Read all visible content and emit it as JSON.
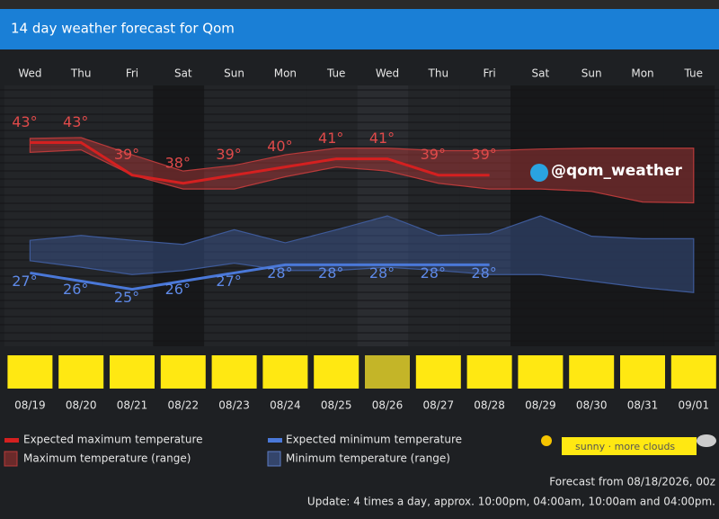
{
  "chart_data": {
    "type": "line",
    "title": "14 day weather forecast for Qom",
    "weekdays": [
      "Wed",
      "Thu",
      "Fri",
      "Sat",
      "Sun",
      "Mon",
      "Tue",
      "Wed",
      "Thu",
      "Fri",
      "Sat",
      "Sun",
      "Mon",
      "Tue"
    ],
    "categories": [
      "08/19",
      "08/20",
      "08/21",
      "08/22",
      "08/23",
      "08/24",
      "08/25",
      "08/26",
      "08/27",
      "08/28",
      "08/29",
      "08/30",
      "08/31",
      "09/01"
    ],
    "ylim": [
      18,
      50
    ],
    "series": [
      {
        "name": "Expected maximum temperature",
        "color": "#d42020",
        "values": [
          43,
          43,
          39,
          38,
          39,
          40,
          41,
          41,
          39,
          39,
          null,
          null,
          null,
          null
        ],
        "value_labels": [
          "43°",
          "43°",
          "39°",
          "38°",
          "39°",
          "40°",
          "41°",
          "41°",
          "39°",
          "39°",
          null,
          null,
          null,
          null
        ]
      },
      {
        "name": "Expected minimum temperature",
        "color": "#4a78d8",
        "values": [
          27,
          26,
          25,
          26,
          27,
          28,
          28,
          28,
          28,
          28,
          null,
          null,
          null,
          null
        ],
        "value_labels": [
          "27°",
          "26°",
          "25°",
          "26°",
          "27°",
          "28°",
          "28°",
          "28°",
          "28°",
          "28°",
          null,
          null,
          null,
          null
        ]
      }
    ],
    "ranges": [
      {
        "name": "Maximum temperature (range)",
        "color": "#b83a3a",
        "high": [
          43.5,
          43.6,
          41.5,
          39.5,
          40.2,
          41.5,
          42.3,
          42.3,
          42,
          42,
          42.2,
          42.3,
          42.3,
          42.3
        ],
        "low": [
          41.8,
          42.1,
          39,
          37.3,
          37.3,
          38.8,
          40,
          39.5,
          38,
          37.3,
          37.3,
          37,
          35.7,
          35.6
        ]
      },
      {
        "name": "Minimum temperature (range)",
        "color": "#3e5a99",
        "high": [
          31,
          31.6,
          31,
          30.5,
          32.3,
          30.7,
          32.3,
          34,
          31.6,
          31.8,
          34,
          31.5,
          31.2,
          31.2
        ],
        "low": [
          28.5,
          27.7,
          26.8,
          27.3,
          28.2,
          27.3,
          27.3,
          27.7,
          27.3,
          26.8,
          26.8,
          26,
          25.2,
          24.6
        ]
      }
    ],
    "sky_colors": [
      "#ffe812",
      "#ffe812",
      "#ffe812",
      "#ffe812",
      "#ffe812",
      "#ffe812",
      "#ffe812",
      "#c4b528",
      "#ffe812",
      "#ffe812",
      "#ffe812",
      "#ffe812",
      "#ffe812",
      "#ffe812"
    ],
    "watermark": "@qom_weather",
    "sky_legend": "sunny · more clouds",
    "forecast_note": "Forecast from 08/18/2026, 00z",
    "update_note": "Update: 4 times a day, approx. 10:00pm, 04:00am, 10:00am and 04:00pm."
  }
}
